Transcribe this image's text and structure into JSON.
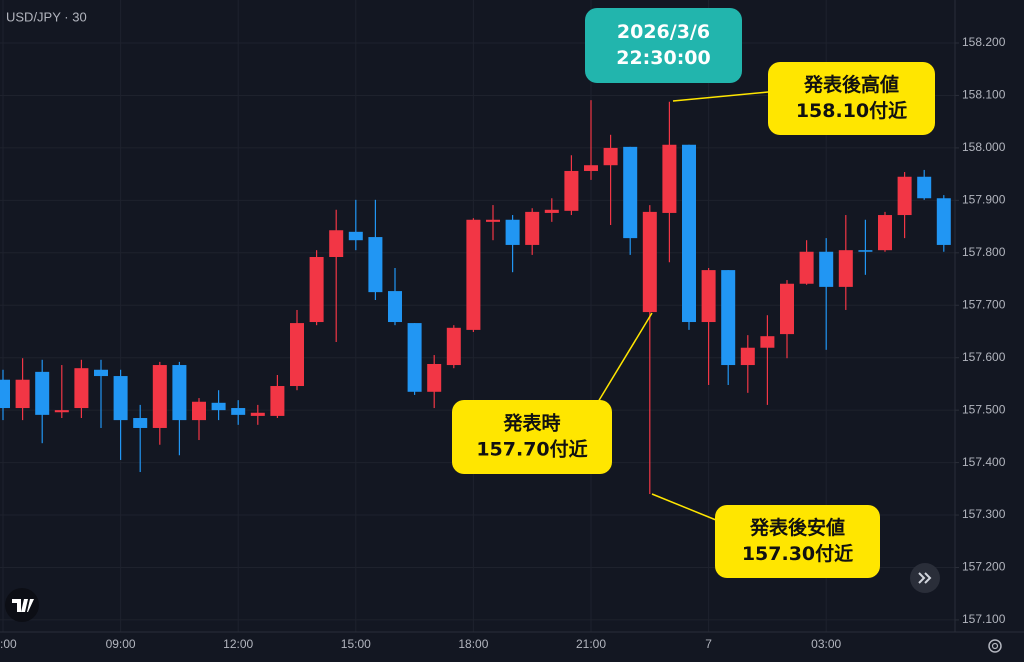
{
  "chart_data": {
    "type": "candlestick",
    "title": "USD/JPY · 30",
    "categories": [
      ":00",
      null,
      null,
      null,
      null,
      null,
      "09:00",
      null,
      null,
      null,
      null,
      null,
      "12:00",
      null,
      null,
      null,
      null,
      null,
      "15:00",
      null,
      null,
      null,
      null,
      null,
      "18:00",
      null,
      null,
      null,
      null,
      null,
      "21:00",
      null,
      null,
      null,
      null,
      null,
      "7",
      null,
      null,
      null,
      null,
      null,
      "03:00",
      null,
      null,
      null,
      null,
      null,
      null
    ],
    "open": [
      157.558,
      157.504,
      157.573,
      157.496,
      157.504,
      157.577,
      157.565,
      157.485,
      157.466,
      157.586,
      157.481,
      157.514,
      157.504,
      157.489,
      157.489,
      157.546,
      157.668,
      157.792,
      157.84,
      157.83,
      157.727,
      157.666,
      157.535,
      157.586,
      157.653,
      157.859,
      157.863,
      157.815,
      157.876,
      157.88,
      157.956,
      157.967,
      158.002,
      157.687,
      157.876,
      158.006,
      157.668,
      157.767,
      157.586,
      157.619,
      157.645,
      157.741,
      157.802,
      157.735,
      157.805,
      157.805,
      157.872,
      157.945,
      157.904
    ],
    "high": [
      157.577,
      157.599,
      157.596,
      157.586,
      157.596,
      157.596,
      157.577,
      157.51,
      157.592,
      157.592,
      157.523,
      157.538,
      157.519,
      157.51,
      157.567,
      157.691,
      157.805,
      157.882,
      157.901,
      157.901,
      157.771,
      157.666,
      157.605,
      157.662,
      157.866,
      157.891,
      157.872,
      157.885,
      157.904,
      157.986,
      158.091,
      158.025,
      158.002,
      157.891,
      158.088,
      158.006,
      157.771,
      157.767,
      157.643,
      157.681,
      157.748,
      157.824,
      157.828,
      157.872,
      157.863,
      157.878,
      157.954,
      157.958,
      157.91
    ],
    "low": [
      157.481,
      157.481,
      157.437,
      157.485,
      157.485,
      157.466,
      157.405,
      157.382,
      157.434,
      157.414,
      157.443,
      157.481,
      157.472,
      157.472,
      157.485,
      157.538,
      157.662,
      157.63,
      157.805,
      157.71,
      157.662,
      157.529,
      157.504,
      157.58,
      157.649,
      157.824,
      157.763,
      157.796,
      157.859,
      157.872,
      157.939,
      157.853,
      157.796,
      157.34,
      157.782,
      157.653,
      157.548,
      157.548,
      157.533,
      157.51,
      157.599,
      157.739,
      157.615,
      157.691,
      157.758,
      157.802,
      157.828,
      157.901,
      157.802
    ],
    "close": [
      157.504,
      157.558,
      157.491,
      157.5,
      157.58,
      157.565,
      157.481,
      157.466,
      157.586,
      157.481,
      157.516,
      157.5,
      157.491,
      157.495,
      157.546,
      157.666,
      157.792,
      157.843,
      157.824,
      157.725,
      157.668,
      157.535,
      157.588,
      157.657,
      157.863,
      157.863,
      157.815,
      157.878,
      157.882,
      157.956,
      157.967,
      158.0,
      157.828,
      157.878,
      158.006,
      157.668,
      157.767,
      157.586,
      157.619,
      157.641,
      157.741,
      157.802,
      157.735,
      157.805,
      157.802,
      157.872,
      157.945,
      157.904,
      157.815
    ],
    "up_color": "#f23645",
    "down_color": "#2196f3",
    "ylim": [
      157.077,
      158.282
    ],
    "yticks": [
      {
        "value": 158.2,
        "label": "158.200"
      },
      {
        "value": 158.1,
        "label": "158.100"
      },
      {
        "value": 158.0,
        "label": "158.000"
      },
      {
        "value": 157.9,
        "label": "157.900"
      },
      {
        "value": 157.8,
        "label": "157.800"
      },
      {
        "value": 157.7,
        "label": "157.700"
      },
      {
        "value": 157.6,
        "label": "157.600"
      },
      {
        "value": 157.5,
        "label": "157.500"
      },
      {
        "value": 157.4,
        "label": "157.400"
      },
      {
        "value": 157.3,
        "label": "157.300"
      },
      {
        "value": 157.2,
        "label": "157.200"
      },
      {
        "value": 157.1,
        "label": "157.100"
      }
    ],
    "grid": true,
    "annotations": [
      {
        "lines": [
          "2026/3/6",
          "22:30:00"
        ]
      },
      {
        "lines": [
          "発表後高値",
          "158.10付近"
        ]
      },
      {
        "lines": [
          "発表時",
          "157.70付近"
        ]
      },
      {
        "lines": [
          "発表後安値",
          "157.30付近"
        ]
      }
    ]
  }
}
